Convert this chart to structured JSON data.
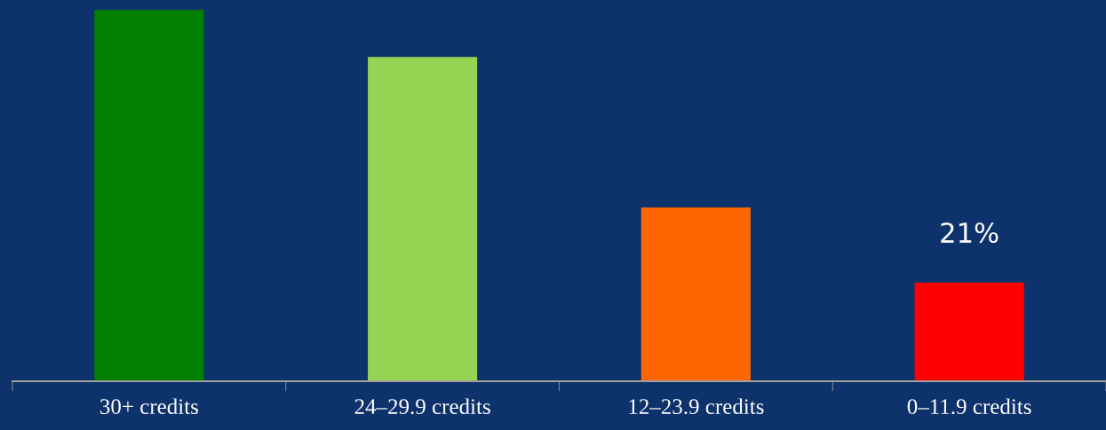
{
  "chart_data": {
    "type": "bar",
    "categories": [
      "30+ credits",
      "24–29.9 credits",
      "12–23.9 credits",
      "0–11.9 credits"
    ],
    "values": [
      79,
      69,
      37,
      21
    ],
    "value_labels": [
      null,
      null,
      null,
      "21%"
    ],
    "colors": [
      "#007f00",
      "#96d353",
      "#ff6600",
      "#ff0000"
    ],
    "grid": false,
    "legend": false,
    "tick_labels": "x"
  }
}
